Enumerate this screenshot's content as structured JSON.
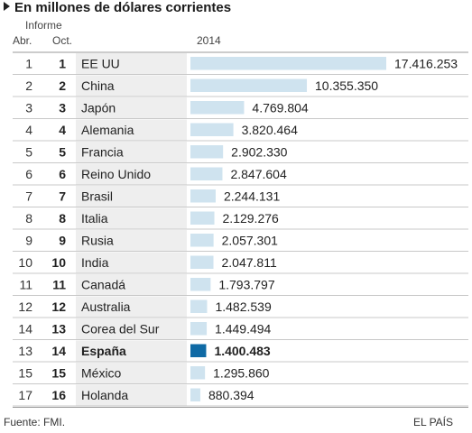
{
  "title": "En millones de dólares corrientes",
  "header": {
    "informe": "Informe",
    "abr": "Abr.",
    "oct": "Oct.",
    "year": "2014"
  },
  "chart_data": {
    "type": "bar",
    "orientation": "horizontal",
    "title": "En millones de dólares corrientes",
    "series": [
      {
        "name": "2014",
        "values": [
          17416253,
          10355350,
          4769804,
          3820464,
          2902330,
          2847604,
          2244131,
          2129276,
          2057301,
          2047811,
          1793797,
          1482539,
          1449494,
          1400483,
          1295860,
          880394
        ]
      }
    ],
    "rows": [
      {
        "abr": "1",
        "oct": "1",
        "country": "EE UU",
        "value": 17416253,
        "label": "17.416.253"
      },
      {
        "abr": "2",
        "oct": "2",
        "country": "China",
        "value": 10355350,
        "label": "10.355.350"
      },
      {
        "abr": "3",
        "oct": "3",
        "country": "Japón",
        "value": 4769804,
        "label": "4.769.804"
      },
      {
        "abr": "4",
        "oct": "4",
        "country": "Alemania",
        "value": 3820464,
        "label": "3.820.464"
      },
      {
        "abr": "5",
        "oct": "5",
        "country": "Francia",
        "value": 2902330,
        "label": "2.902.330"
      },
      {
        "abr": "6",
        "oct": "6",
        "country": "Reino Unido",
        "value": 2847604,
        "label": "2.847.604"
      },
      {
        "abr": "7",
        "oct": "7",
        "country": "Brasil",
        "value": 2244131,
        "label": "2.244.131"
      },
      {
        "abr": "8",
        "oct": "8",
        "country": "Italia",
        "value": 2129276,
        "label": "2.129.276"
      },
      {
        "abr": "9",
        "oct": "9",
        "country": "Rusia",
        "value": 2057301,
        "label": "2.057.301"
      },
      {
        "abr": "10",
        "oct": "10",
        "country": "India",
        "value": 2047811,
        "label": "2.047.811"
      },
      {
        "abr": "11",
        "oct": "11",
        "country": "Canadá",
        "value": 1793797,
        "label": "1.793.797"
      },
      {
        "abr": "12",
        "oct": "12",
        "country": "Australia",
        "value": 1482539,
        "label": "1.482.539"
      },
      {
        "abr": "14",
        "oct": "13",
        "country": "Corea del Sur",
        "value": 1449494,
        "label": "1.449.494"
      },
      {
        "abr": "13",
        "oct": "14",
        "country": "España",
        "value": 1400483,
        "label": "1.400.483",
        "highlight": true
      },
      {
        "abr": "15",
        "oct": "15",
        "country": "México",
        "value": 1295860,
        "label": "1.295.860"
      },
      {
        "abr": "17",
        "oct": "16",
        "country": "Holanda",
        "value": 880394,
        "label": "880.394"
      }
    ],
    "colors": {
      "bar": "#cfe3ef",
      "highlight": "#0f6aa5",
      "shade": "#eeeeee"
    }
  },
  "footer": {
    "source": "Fuente: FMI.",
    "brand": "EL PAÍS"
  }
}
